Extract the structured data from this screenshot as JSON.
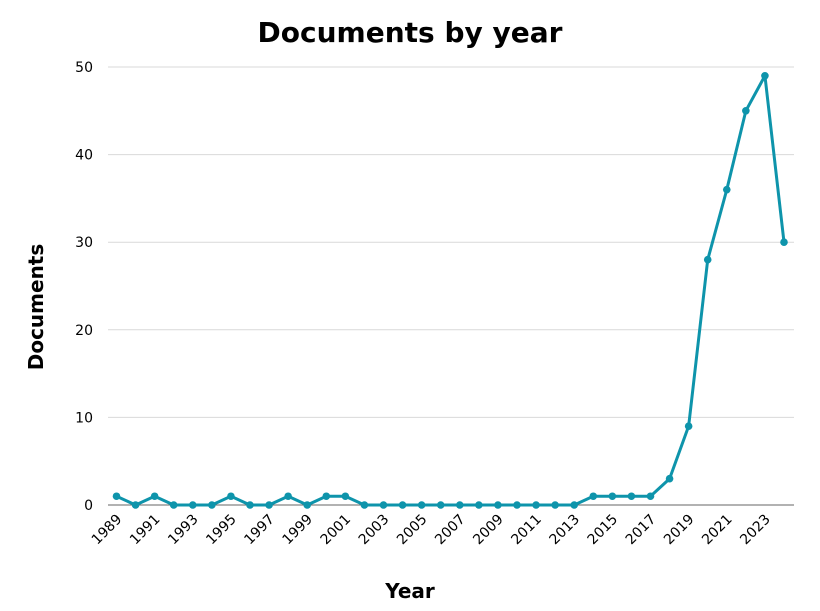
{
  "chart_data": {
    "type": "line",
    "title": "Documents by year",
    "xlabel": "Year",
    "ylabel": "Documents",
    "ylim": [
      0,
      50
    ],
    "yticks": [
      0,
      10,
      20,
      30,
      40,
      50
    ],
    "grid": true,
    "legend": "none",
    "x": [
      1989,
      1990,
      1991,
      1992,
      1993,
      1994,
      1995,
      1996,
      1997,
      1998,
      1999,
      2000,
      2001,
      2002,
      2003,
      2004,
      2005,
      2006,
      2007,
      2008,
      2009,
      2010,
      2011,
      2012,
      2013,
      2014,
      2015,
      2016,
      2017,
      2018,
      2019,
      2020,
      2021,
      2022,
      2023,
      2024
    ],
    "xtick_labels": [
      "1989",
      "1991",
      "1993",
      "1995",
      "1997",
      "1999",
      "2001",
      "2003",
      "2005",
      "2007",
      "2009",
      "2011",
      "2013",
      "2015",
      "2017",
      "2019",
      "2021",
      "2023"
    ],
    "series": [
      {
        "values": [
          1,
          0,
          1,
          0,
          0,
          0,
          1,
          0,
          0,
          1,
          0,
          1,
          1,
          0,
          0,
          0,
          0,
          0,
          0,
          0,
          0,
          0,
          0,
          0,
          0,
          1,
          1,
          1,
          1,
          3,
          9,
          28,
          36,
          45,
          49,
          30
        ],
        "color": "#0e94ab"
      }
    ]
  }
}
